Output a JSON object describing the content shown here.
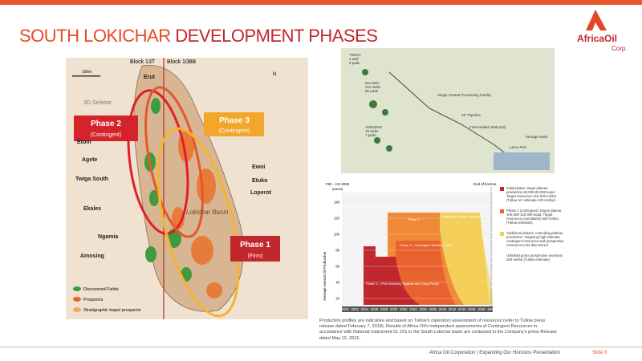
{
  "header": {
    "title_a": "SOUTH LOKICHAR",
    "title_b": "DEVELOPMENT PHASES",
    "logo_name": "AfricaOil",
    "logo_sub": "Corp."
  },
  "map": {
    "block_left": "Block 13T",
    "block_right": "Block 10BB",
    "scale": "10km",
    "north": "N",
    "seismic": "3D Seismic",
    "phase2": {
      "name": "Phase 2",
      "status": "(Contingent)"
    },
    "phase3": {
      "name": "Phase 3",
      "status": "(Contingent)"
    },
    "phase1": {
      "name": "Phase 1",
      "status": "(Firm)"
    },
    "basin": "Lokichar Basin",
    "fields": [
      "Erut",
      "Etom",
      "Agete",
      "Twiga South",
      "Ekales",
      "Ewoi",
      "Etuko",
      "Loperot",
      "Ngamia",
      "Amosing"
    ],
    "legend": [
      "Discovered Fields",
      "Prospects",
      "Stratigraphic traps/ prospects"
    ]
  },
  "diagram": {
    "labels": [
      "TWIGA",
      "1 well",
      "2 pads",
      "NGAMIA",
      "210 wells",
      "55 pads",
      "AMOSING",
      "79 wells",
      "7 pads",
      "Single Central Processing Facility",
      "16\" Pipeline",
      "Intermediate Station(s)",
      "Lamu Port",
      "Storage tanks"
    ]
  },
  "production": {
    "fid": "FID – H2 2020",
    "end": "End of licence",
    "unit": "(kbbl/d)",
    "y_label": "Average Annual Oil Production",
    "yticks": [
      "140",
      "120",
      "100",
      "80",
      "60",
      "40",
      "20"
    ],
    "xticks": [
      "2020",
      "2022",
      "2024",
      "2026",
      "2028",
      "2030",
      "2032",
      "2034",
      "2036",
      "2038",
      "2040",
      "2042",
      "2044",
      "2046",
      "2048",
      "2050"
    ],
    "areas": [
      "Phase 1 – Firm Amosing, Ngamia and Twiga Fields",
      "Phase 2 – Contingent Western Fields",
      "Phase 3",
      "Additional Phases Contingent"
    ],
    "legend": [
      "Initial phase: target plateau production 60,000-80,000 bopd. Target resources 210-230 mmbo (Tullow 1C estimate 240 mmbo).",
      "Phase 2 (contingent): target plateau 100,000-120,000 bopd. Target resources (cumulative) 500 mmbo (Tullow estimate).",
      "Additional phases: extending plateau production. Targeting high estimate contingent resources and prospective resources to be discovered.",
      "Unlinked gross prospective inventory 200 mmbo (Tullow estimate)."
    ]
  },
  "footnote": "Production profiles are indicative and based on Tullow's (operator) assessment of resources (refer to Tullow press release dated February 7, 2018). Results of Africa Oil's independent assessments of Contingent Resources in accordance with National Instrument 51-101 in the South Lokichar basin are contained in the Company's press Release dated May 10, 2016.",
  "footer": {
    "text": "Africa Oil Corporation | Expanding Our Horizons Presentation",
    "slide": "Slide 8"
  }
}
